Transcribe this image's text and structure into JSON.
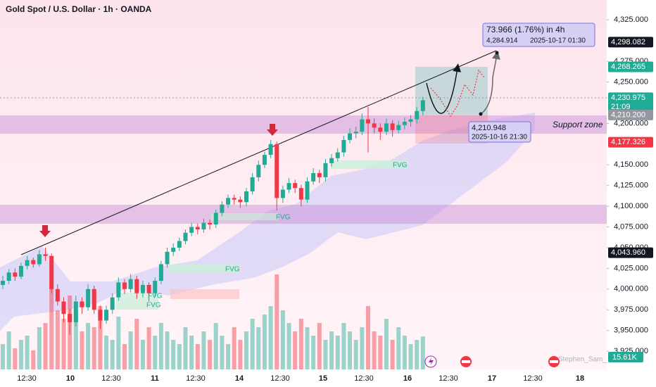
{
  "chart_data": {
    "type": "candlestick",
    "title": "Gold Spot / U.S. Dollar · 1h · OANDA",
    "candle_up_color": "#22ab94",
    "candle_down_color": "#f23645",
    "ylim": [
      3903,
      4349
    ],
    "yticks": [
      {
        "value": 4325,
        "label": "4,325.000"
      },
      {
        "value": 4275,
        "label": "4,275.000"
      },
      {
        "value": 4250,
        "label": "4,250.000"
      },
      {
        "value": 4200,
        "label": "4,200.000"
      },
      {
        "value": 4150,
        "label": "4,150.000"
      },
      {
        "value": 4125,
        "label": "4,125.000"
      },
      {
        "value": 4100,
        "label": "4,100.000"
      },
      {
        "value": 4075,
        "label": "4,075.000"
      },
      {
        "value": 4050,
        "label": "4,050.000"
      },
      {
        "value": 4025,
        "label": "4,025.000"
      },
      {
        "value": 4000,
        "label": "4,000.000"
      },
      {
        "value": 3975,
        "label": "3,975.000"
      },
      {
        "value": 3950,
        "label": "3,950.000"
      },
      {
        "value": 3925,
        "label": "3,925.000"
      }
    ],
    "time_labels": [
      "12:30",
      "10",
      "12:30",
      "11",
      "12:30",
      "14",
      "12:30",
      "15",
      "12:30",
      "16",
      "12:30",
      "17",
      "12:30",
      "18"
    ],
    "candles": [
      [
        4005,
        4016,
        4000,
        4010
      ],
      [
        4010,
        4024,
        4006,
        4020
      ],
      [
        4020,
        4025,
        4010,
        4015
      ],
      [
        4015,
        4032,
        4012,
        4028
      ],
      [
        4028,
        4040,
        4024,
        4035
      ],
      [
        4035,
        4038,
        4026,
        4030
      ],
      [
        4030,
        4047,
        4027,
        4042
      ],
      [
        4042,
        4050,
        4034,
        4040
      ],
      [
        4040,
        4043,
        3995,
        4000
      ],
      [
        4000,
        4006,
        3980,
        3985
      ],
      [
        3985,
        3990,
        3960,
        3970
      ],
      [
        3970,
        3976,
        3945,
        3960
      ],
      [
        3960,
        3992,
        3955,
        3985
      ],
      [
        3985,
        3990,
        3970,
        3978
      ],
      [
        3978,
        4006,
        3974,
        4000
      ],
      [
        4000,
        4004,
        3970,
        3975
      ],
      [
        3975,
        3980,
        3952,
        3962
      ],
      [
        3962,
        3980,
        3958,
        3975
      ],
      [
        3975,
        3995,
        3970,
        3990
      ],
      [
        3990,
        4014,
        3986,
        4008
      ],
      [
        4008,
        4012,
        3994,
        4000
      ],
      [
        4000,
        4018,
        3996,
        4012
      ],
      [
        4012,
        4016,
        3988,
        3995
      ],
      [
        3995,
        4010,
        3990,
        4005
      ],
      [
        4005,
        4008,
        3985,
        3995
      ],
      [
        3995,
        4014,
        3990,
        4010
      ],
      [
        4010,
        4034,
        4006,
        4030
      ],
      [
        4030,
        4050,
        4026,
        4045
      ],
      [
        4045,
        4055,
        4040,
        4050
      ],
      [
        4050,
        4062,
        4046,
        4058
      ],
      [
        4058,
        4072,
        4054,
        4068
      ],
      [
        4068,
        4080,
        4064,
        4075
      ],
      [
        4075,
        4079,
        4066,
        4072
      ],
      [
        4072,
        4085,
        4068,
        4080
      ],
      [
        4080,
        4084,
        4072,
        4078
      ],
      [
        4078,
        4096,
        4074,
        4092
      ],
      [
        4092,
        4106,
        4088,
        4102
      ],
      [
        4102,
        4114,
        4098,
        4110
      ],
      [
        4110,
        4114,
        4102,
        4108
      ],
      [
        4108,
        4112,
        4098,
        4105
      ],
      [
        4105,
        4122,
        4100,
        4118
      ],
      [
        4118,
        4140,
        4114,
        4135
      ],
      [
        4135,
        4155,
        4130,
        4150
      ],
      [
        4150,
        4166,
        4146,
        4162
      ],
      [
        4162,
        4180,
        4158,
        4175
      ],
      [
        4175,
        4178,
        4095,
        4110
      ],
      [
        4110,
        4125,
        4104,
        4120
      ],
      [
        4120,
        4134,
        4116,
        4128
      ],
      [
        4128,
        4132,
        4116,
        4122
      ],
      [
        4122,
        4126,
        4100,
        4108
      ],
      [
        4108,
        4135,
        4104,
        4130
      ],
      [
        4130,
        4146,
        4126,
        4140
      ],
      [
        4140,
        4144,
        4128,
        4135
      ],
      [
        4135,
        4157,
        4130,
        4152
      ],
      [
        4152,
        4163,
        4148,
        4158
      ],
      [
        4158,
        4170,
        4154,
        4165
      ],
      [
        4165,
        4185,
        4160,
        4180
      ],
      [
        4180,
        4194,
        4176,
        4188
      ],
      [
        4188,
        4196,
        4182,
        4190
      ],
      [
        4190,
        4212,
        4186,
        4205
      ],
      [
        4205,
        4220,
        4165,
        4200
      ],
      [
        4200,
        4206,
        4188,
        4195
      ],
      [
        4195,
        4200,
        4180,
        4190
      ],
      [
        4190,
        4206,
        4186,
        4200
      ],
      [
        4200,
        4204,
        4184,
        4192
      ],
      [
        4192,
        4203,
        4188,
        4198
      ],
      [
        4198,
        4207,
        4193,
        4202
      ],
      [
        4202,
        4210,
        4196,
        4205
      ],
      [
        4205,
        4220,
        4200,
        4215
      ],
      [
        4215,
        4232,
        4210,
        4228
      ]
    ],
    "volume": [
      12,
      18,
      10,
      14,
      16,
      9,
      20,
      22,
      40,
      28,
      24,
      35,
      26,
      18,
      22,
      20,
      30,
      16,
      14,
      25,
      12,
      18,
      24,
      14,
      20,
      16,
      22,
      18,
      14,
      12,
      20,
      16,
      12,
      18,
      14,
      22,
      16,
      12,
      20,
      14,
      18,
      24,
      20,
      26,
      30,
      45,
      28,
      22,
      18,
      24,
      20,
      16,
      22,
      14,
      18,
      16,
      22,
      18,
      14,
      20,
      30,
      18,
      16,
      24,
      14,
      20,
      16,
      12,
      14,
      15.61
    ],
    "volume_label": {
      "value": 15.61,
      "label": "15.61K"
    },
    "price_labels": [
      {
        "value": 4298.082,
        "label": "4,298.082",
        "color": "#131722"
      },
      {
        "value": 4268.265,
        "label": "4,268.265",
        "color": "#22ab94"
      },
      {
        "value": 4230.975,
        "label": "4,230.975",
        "sublabel": "21:09",
        "color": "#22ab94"
      },
      {
        "value": 4210.2,
        "label": "4,210.200",
        "color": "#9598a1"
      },
      {
        "value": 4177.326,
        "label": "4,177.326",
        "color": "#f23645"
      },
      {
        "value": 4043.96,
        "label": "4,043.960",
        "color": "#131722"
      }
    ],
    "measure": {
      "text": "73.966 (1.76%) in 4h",
      "price": "4,284.914",
      "time": "2025-10-17  01:30"
    },
    "point": {
      "price": "4,210.948",
      "time": "2025-10-16 21:30"
    },
    "zone_label": "Support zone",
    "fvg_labels": [
      "FVG",
      "FVG",
      "FVG",
      "FVG",
      "FVG"
    ],
    "watermark": "Stephen_Sam_"
  }
}
